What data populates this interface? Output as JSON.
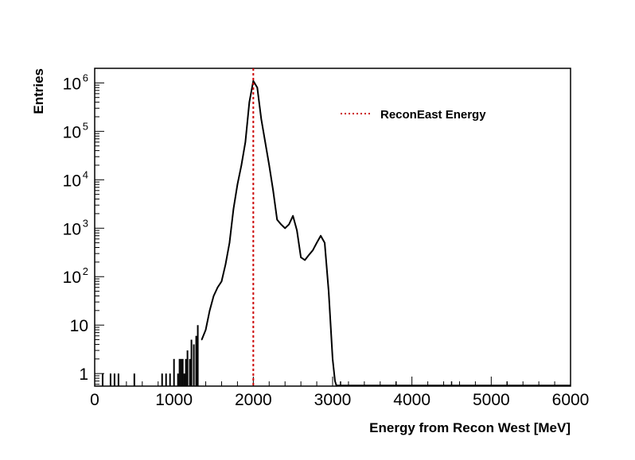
{
  "chart_data": {
    "type": "line",
    "title": "",
    "xlabel": "Energy from Recon West [MeV]",
    "ylabel": "Entries",
    "xlim": [
      0,
      6000
    ],
    "ylim": [
      0.55,
      2000000
    ],
    "y_scale": "log",
    "grid": false,
    "legend_position": "top-right",
    "x_ticks": [
      {
        "value": 0,
        "label": "0"
      },
      {
        "value": 1000,
        "label": "1000"
      },
      {
        "value": 2000,
        "label": "2000"
      },
      {
        "value": 3000,
        "label": "3000"
      },
      {
        "value": 4000,
        "label": "4000"
      },
      {
        "value": 5000,
        "label": "5000"
      },
      {
        "value": 6000,
        "label": "6000"
      }
    ],
    "y_ticks": [
      {
        "value": 1,
        "label": "1",
        "exp": ""
      },
      {
        "value": 10,
        "label": "10",
        "exp": ""
      },
      {
        "value": 100,
        "label": "10",
        "exp": "2"
      },
      {
        "value": 1000,
        "label": "10",
        "exp": "3"
      },
      {
        "value": 10000,
        "label": "10",
        "exp": "4"
      },
      {
        "value": 100000,
        "label": "10",
        "exp": "5"
      },
      {
        "value": 1000000,
        "label": "10",
        "exp": "6"
      }
    ],
    "series": [
      {
        "name": "",
        "color": "#000000",
        "style": "histogram-line",
        "x": [
          1350,
          1400,
          1450,
          1500,
          1550,
          1600,
          1650,
          1700,
          1750,
          1800,
          1850,
          1900,
          1950,
          2000,
          2050,
          2100,
          2150,
          2200,
          2250,
          2300,
          2350,
          2400,
          2450,
          2500,
          2550,
          2600,
          2650,
          2700,
          2750,
          2800,
          2850,
          2900,
          2950,
          3000,
          3030,
          3050
        ],
        "values": [
          5,
          8,
          20,
          40,
          60,
          80,
          180,
          500,
          2500,
          8000,
          20000,
          60000,
          400000,
          1100000,
          800000,
          180000,
          60000,
          20000,
          6000,
          1500,
          1200,
          1000,
          1200,
          1800,
          900,
          250,
          220,
          280,
          350,
          500,
          700,
          500,
          50,
          2,
          0.7,
          0.5
        ]
      },
      {
        "name": "",
        "color": "#000000",
        "style": "spikes",
        "x": [
          100,
          200,
          250,
          300,
          500,
          850,
          900,
          950,
          1000,
          1050,
          1070,
          1090,
          1110,
          1130,
          1150,
          1170,
          1200,
          1220,
          1250,
          1280,
          1300
        ],
        "values": [
          1,
          1,
          1,
          1,
          1,
          1,
          1,
          1,
          2,
          1,
          2,
          2,
          2,
          1,
          2,
          3,
          2,
          5,
          4,
          6,
          10
        ]
      }
    ],
    "reference_lines": [
      {
        "name": "ReconEast Energy",
        "x": 2000,
        "color": "#cc0000",
        "style": "dotted"
      }
    ]
  }
}
